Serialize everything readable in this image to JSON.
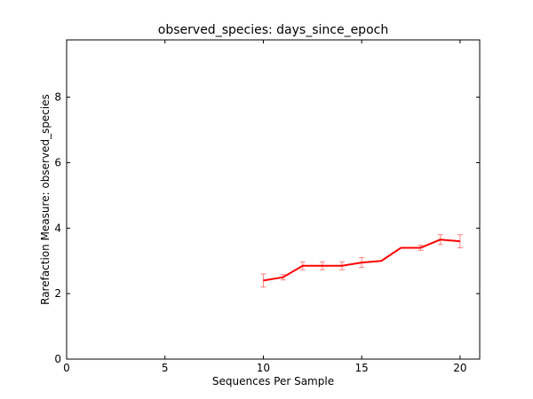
{
  "chart_data": {
    "type": "line",
    "title": "observed_species: days_since_epoch",
    "xlabel": "Sequences Per Sample",
    "ylabel": "Rarefaction Measure: observed_species",
    "xlim": [
      0,
      21
    ],
    "ylim": [
      0,
      9.75
    ],
    "xticks": [
      0,
      5,
      10,
      15,
      20
    ],
    "yticks": [
      0,
      2,
      4,
      6,
      8
    ],
    "grid": false,
    "series": [
      {
        "color": "#ff0000",
        "error_bar_color": "#ff7f7f",
        "x": [
          10,
          11,
          12,
          13,
          14,
          15,
          16,
          17,
          18,
          19,
          20
        ],
        "y": [
          2.4,
          2.5,
          2.85,
          2.85,
          2.85,
          2.95,
          3.0,
          3.4,
          3.4,
          3.65,
          3.6
        ],
        "yerr": [
          0.2,
          0.08,
          0.12,
          0.12,
          0.12,
          0.15,
          0.0,
          0.0,
          0.08,
          0.15,
          0.2
        ]
      }
    ]
  }
}
